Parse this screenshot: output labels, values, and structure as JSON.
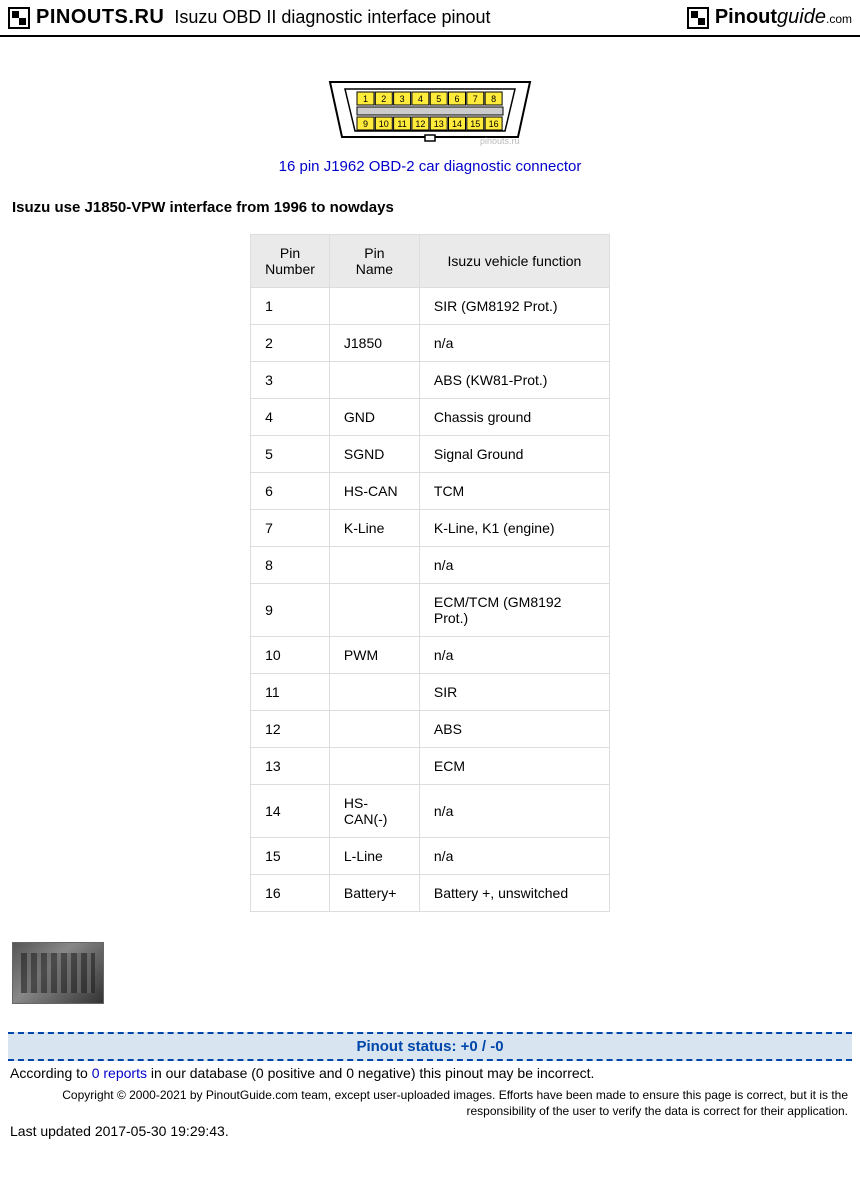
{
  "header": {
    "logo_text": "PINOUTS.RU",
    "page_title": "Isuzu OBD II diagnostic interface pinout",
    "right_logo_main": "Pinout",
    "right_logo_guide": "guide",
    "right_logo_dotcom": ".com"
  },
  "connector": {
    "top_pins": [
      "1",
      "2",
      "3",
      "4",
      "5",
      "6",
      "7",
      "8"
    ],
    "bottom_pins": [
      "9",
      "10",
      "11",
      "12",
      "13",
      "14",
      "15",
      "16"
    ],
    "watermark": "pinouts.ru",
    "link_text": "16 pin J1962 OBD-2 car diagnostic connector",
    "diagram_width": 210,
    "pin_fill": "#ffeb3b",
    "outline_stroke": "#000000"
  },
  "subheading": "Isuzu use J1850-VPW interface from 1996 to nowdays",
  "table": {
    "columns": [
      "Pin Number",
      "Pin Name",
      "Isuzu vehicle function"
    ],
    "rows": [
      [
        "1",
        "",
        "SIR (GM8192 Prot.)"
      ],
      [
        "2",
        "J1850",
        "n/a"
      ],
      [
        "3",
        "",
        " ABS (KW81-Prot.)"
      ],
      [
        "4",
        "GND",
        " Chassis ground"
      ],
      [
        "5",
        "SGND",
        " Signal Ground"
      ],
      [
        "6",
        "HS-CAN",
        "TCM"
      ],
      [
        "7",
        "K-Line",
        "K-Line, K1 (engine)"
      ],
      [
        "8",
        "",
        "n/a"
      ],
      [
        "9",
        "",
        "ECM/TCM (GM8192 Prot.)"
      ],
      [
        "10",
        " PWM",
        "n/a"
      ],
      [
        "11",
        "",
        "SIR"
      ],
      [
        "12",
        "",
        "ABS"
      ],
      [
        "13",
        "",
        "ECM"
      ],
      [
        "14",
        " HS-CAN(-)",
        "n/a"
      ],
      [
        "15",
        " L-Line",
        "n/a"
      ],
      [
        "16",
        " Battery+",
        "Battery +, unswitched"
      ]
    ]
  },
  "status": {
    "label": "Pinout status: +0 / -0",
    "reports_pre": "According to ",
    "reports_link": "0 reports",
    "reports_post": " in our database (0 positive and 0 negative) this pinout may be incorrect."
  },
  "copyright": "Copyright © 2000-2021 by PinoutGuide.com team, except user-uploaded images. Efforts have been made to ensure this page is correct, but it is the responsibility of the user to verify the data is correct for their application.",
  "updated": "Last updated 2017-05-30 19:29:43."
}
